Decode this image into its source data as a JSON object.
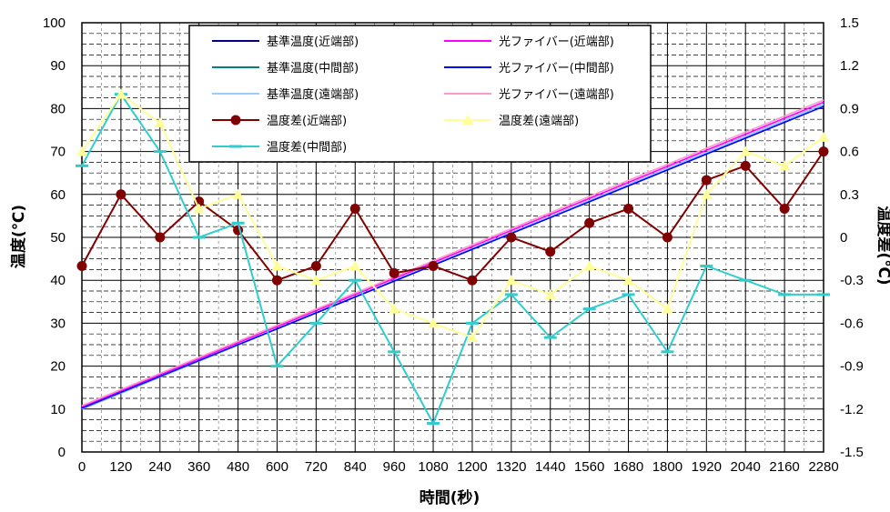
{
  "chart_data": {
    "type": "line",
    "title": "",
    "xlabel": "時間(秒)",
    "ylabel": "温度(℃)",
    "y2label": "温度差(℃)",
    "xlim": [
      0,
      2280
    ],
    "ylim": [
      0,
      100
    ],
    "y2lim": [
      -1.5,
      1.5
    ],
    "x_ticks": [
      "0",
      "120",
      "240",
      "360",
      "480",
      "600",
      "720",
      "840",
      "960",
      "1080",
      "1200",
      "1320",
      "1440",
      "1560",
      "1680",
      "1800",
      "1920",
      "2040",
      "2160",
      "2280"
    ],
    "y_ticks": [
      "0",
      "10",
      "20",
      "30",
      "40",
      "50",
      "60",
      "70",
      "80",
      "90",
      "100"
    ],
    "y2_ticks": [
      "-1.5",
      "-1.2",
      "-0.9",
      "-0.6",
      "-0.3",
      "0",
      "0.3",
      "0.6",
      "0.9",
      "1.2",
      "1.5"
    ],
    "grid": true,
    "legend_position": "top-center",
    "temperature_series": [
      {
        "name": "基準温度(近端部)",
        "color": "#000080",
        "x": [
          0,
          2280
        ],
        "y": [
          10,
          81
        ]
      },
      {
        "name": "基準温度(中間部)",
        "color": "#008080",
        "x": [
          0,
          2280
        ],
        "y": [
          10,
          81
        ]
      },
      {
        "name": "基準温度(遠端部)",
        "color": "#99ccff",
        "x": [
          0,
          2280
        ],
        "y": [
          10,
          81
        ]
      },
      {
        "name": "光ファイバー(近端部)",
        "color": "#ff00ff",
        "x": [
          0,
          2280
        ],
        "y": [
          10.5,
          81.5
        ]
      },
      {
        "name": "光ファイバー(中間部)",
        "color": "#0000ff",
        "x": [
          0,
          2280
        ],
        "y": [
          10.2,
          80.5
        ]
      },
      {
        "name": "光ファイバー(遠端部)",
        "color": "#ff99cc",
        "x": [
          0,
          2280
        ],
        "y": [
          10.8,
          82
        ]
      }
    ],
    "difference_series": [
      {
        "name": "温度差(近端部)",
        "color": "#800000",
        "marker": "circle",
        "x": [
          0,
          120,
          240,
          360,
          480,
          600,
          720,
          840,
          960,
          1080,
          1200,
          1320,
          1440,
          1560,
          1680,
          1800,
          1920,
          2040,
          2160,
          2280
        ],
        "y": [
          -0.2,
          0.3,
          0.0,
          0.25,
          0.05,
          -0.3,
          -0.2,
          0.2,
          -0.25,
          -0.2,
          -0.3,
          0.0,
          -0.1,
          0.1,
          0.2,
          0.0,
          0.4,
          0.5,
          0.2,
          0.6
        ]
      },
      {
        "name": "温度差(中間部)",
        "color": "#33cccc",
        "marker": "dash",
        "x": [
          0,
          120,
          240,
          360,
          480,
          600,
          720,
          840,
          960,
          1080,
          1200,
          1320,
          1440,
          1560,
          1680,
          1800,
          1920,
          2040,
          2160,
          2280
        ],
        "y": [
          0.5,
          1.0,
          0.6,
          0.0,
          0.1,
          -0.9,
          -0.6,
          -0.3,
          -0.8,
          -1.3,
          -0.6,
          -0.4,
          -0.7,
          -0.5,
          -0.4,
          -0.8,
          -0.2,
          -0.3,
          -0.4,
          -0.4
        ]
      },
      {
        "name": "温度差(遠端部)",
        "color": "#ffff99",
        "marker": "triangle",
        "x": [
          0,
          120,
          240,
          360,
          480,
          600,
          720,
          840,
          960,
          1080,
          1200,
          1320,
          1440,
          1560,
          1680,
          1800,
          1920,
          2040,
          2160,
          2280
        ],
        "y": [
          0.6,
          1.0,
          0.8,
          0.2,
          0.3,
          -0.2,
          -0.3,
          -0.2,
          -0.5,
          -0.6,
          -0.7,
          -0.3,
          -0.4,
          -0.2,
          -0.3,
          -0.5,
          0.3,
          0.6,
          0.5,
          0.7
        ]
      }
    ]
  }
}
